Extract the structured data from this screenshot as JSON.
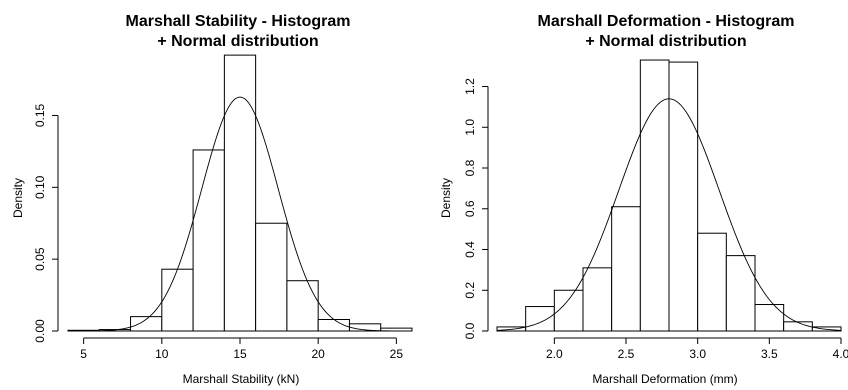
{
  "chart_data": [
    {
      "type": "bar",
      "title_line1": "Marshall Stability - Histogram",
      "title_line2": "+ Normal distribution",
      "xlabel": "Marshall Stability (kN)",
      "ylabel": "Density",
      "xlim": [
        4,
        26
      ],
      "ylim": [
        0,
        0.19
      ],
      "x_ticks": [
        5,
        10,
        15,
        20,
        25
      ],
      "x_tick_labels": [
        "5",
        "10",
        "15",
        "20",
        "25"
      ],
      "y_ticks": [
        0,
        0.05,
        0.1,
        0.15
      ],
      "y_tick_labels": [
        "0.00",
        "0.05",
        "0.10",
        "0.15"
      ],
      "bins": [
        {
          "start": 4,
          "end": 6,
          "density": 0.0005
        },
        {
          "start": 6,
          "end": 8,
          "density": 0.001
        },
        {
          "start": 8,
          "end": 10,
          "density": 0.01
        },
        {
          "start": 10,
          "end": 12,
          "density": 0.043
        },
        {
          "start": 12,
          "end": 14,
          "density": 0.126
        },
        {
          "start": 14,
          "end": 16,
          "density": 0.192
        },
        {
          "start": 16,
          "end": 18,
          "density": 0.075
        },
        {
          "start": 18,
          "end": 20,
          "density": 0.035
        },
        {
          "start": 20,
          "end": 22,
          "density": 0.008
        },
        {
          "start": 22,
          "end": 24,
          "density": 0.005
        },
        {
          "start": 24,
          "end": 26,
          "density": 0.002
        }
      ],
      "normal_curve": {
        "mean": 15.0,
        "sd": 2.45
      }
    },
    {
      "type": "bar",
      "title_line1": "Marshall Deformation - Histogram",
      "title_line2": "+ Normal distribution",
      "xlabel": "Marshall Deformation (mm)",
      "ylabel": "Density",
      "xlim": [
        1.6,
        4.0
      ],
      "ylim": [
        0,
        1.34
      ],
      "x_ticks": [
        2.0,
        2.5,
        3.0,
        3.5,
        4.0
      ],
      "x_tick_labels": [
        "2.0",
        "2.5",
        "3.0",
        "3.5",
        "4.0"
      ],
      "y_ticks": [
        0,
        0.2,
        0.4,
        0.6,
        0.8,
        1.0,
        1.2
      ],
      "y_tick_labels": [
        "0.0",
        "0.2",
        "0.4",
        "0.6",
        "0.8",
        "1.0",
        "1.2"
      ],
      "bins": [
        {
          "start": 1.6,
          "end": 1.8,
          "density": 0.02
        },
        {
          "start": 1.8,
          "end": 2.0,
          "density": 0.12
        },
        {
          "start": 2.0,
          "end": 2.2,
          "density": 0.2
        },
        {
          "start": 2.2,
          "end": 2.4,
          "density": 0.31
        },
        {
          "start": 2.4,
          "end": 2.6,
          "density": 0.61
        },
        {
          "start": 2.6,
          "end": 2.8,
          "density": 1.33
        },
        {
          "start": 2.8,
          "end": 3.0,
          "density": 1.32
        },
        {
          "start": 3.0,
          "end": 3.2,
          "density": 0.48
        },
        {
          "start": 3.2,
          "end": 3.4,
          "density": 0.37
        },
        {
          "start": 3.4,
          "end": 3.6,
          "density": 0.13
        },
        {
          "start": 3.6,
          "end": 3.8,
          "density": 0.045
        },
        {
          "start": 3.8,
          "end": 4.0,
          "density": 0.02
        }
      ],
      "normal_curve": {
        "mean": 2.8,
        "sd": 0.35
      }
    }
  ]
}
